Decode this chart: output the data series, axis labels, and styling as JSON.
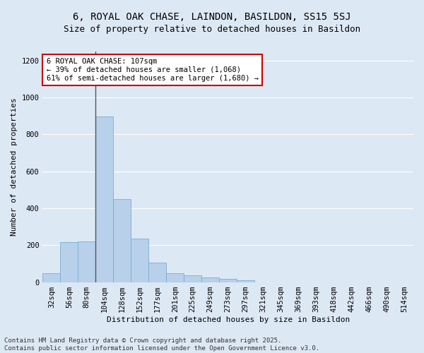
{
  "title1": "6, ROYAL OAK CHASE, LAINDON, BASILDON, SS15 5SJ",
  "title2": "Size of property relative to detached houses in Basildon",
  "xlabel": "Distribution of detached houses by size in Basildon",
  "ylabel": "Number of detached properties",
  "categories": [
    "32sqm",
    "56sqm",
    "80sqm",
    "104sqm",
    "128sqm",
    "152sqm",
    "177sqm",
    "201sqm",
    "225sqm",
    "249sqm",
    "273sqm",
    "297sqm",
    "321sqm",
    "345sqm",
    "369sqm",
    "393sqm",
    "418sqm",
    "442sqm",
    "466sqm",
    "490sqm",
    "514sqm"
  ],
  "values": [
    50,
    215,
    220,
    895,
    450,
    235,
    105,
    50,
    35,
    25,
    18,
    8,
    0,
    0,
    0,
    0,
    0,
    0,
    0,
    0,
    0
  ],
  "bar_color": "#b8d0ea",
  "bar_edge_color": "#7aadd4",
  "vline_x_index": 3,
  "annotation_text": "6 ROYAL OAK CHASE: 107sqm\n← 39% of detached houses are smaller (1,068)\n61% of semi-detached houses are larger (1,680) →",
  "annotation_box_facecolor": "#ffffff",
  "annotation_box_edgecolor": "#cc0000",
  "vline_color": "#555555",
  "ylim": [
    0,
    1250
  ],
  "yticks": [
    0,
    200,
    400,
    600,
    800,
    1000,
    1200
  ],
  "background_color": "#dde8f5",
  "grid_color": "#ffffff",
  "footer_text": "Contains HM Land Registry data © Crown copyright and database right 2025.\nContains public sector information licensed under the Open Government Licence v3.0.",
  "title1_fontsize": 10,
  "title2_fontsize": 9,
  "xlabel_fontsize": 8,
  "ylabel_fontsize": 8,
  "tick_fontsize": 7.5,
  "annotation_fontsize": 7.5,
  "footer_fontsize": 6.5
}
